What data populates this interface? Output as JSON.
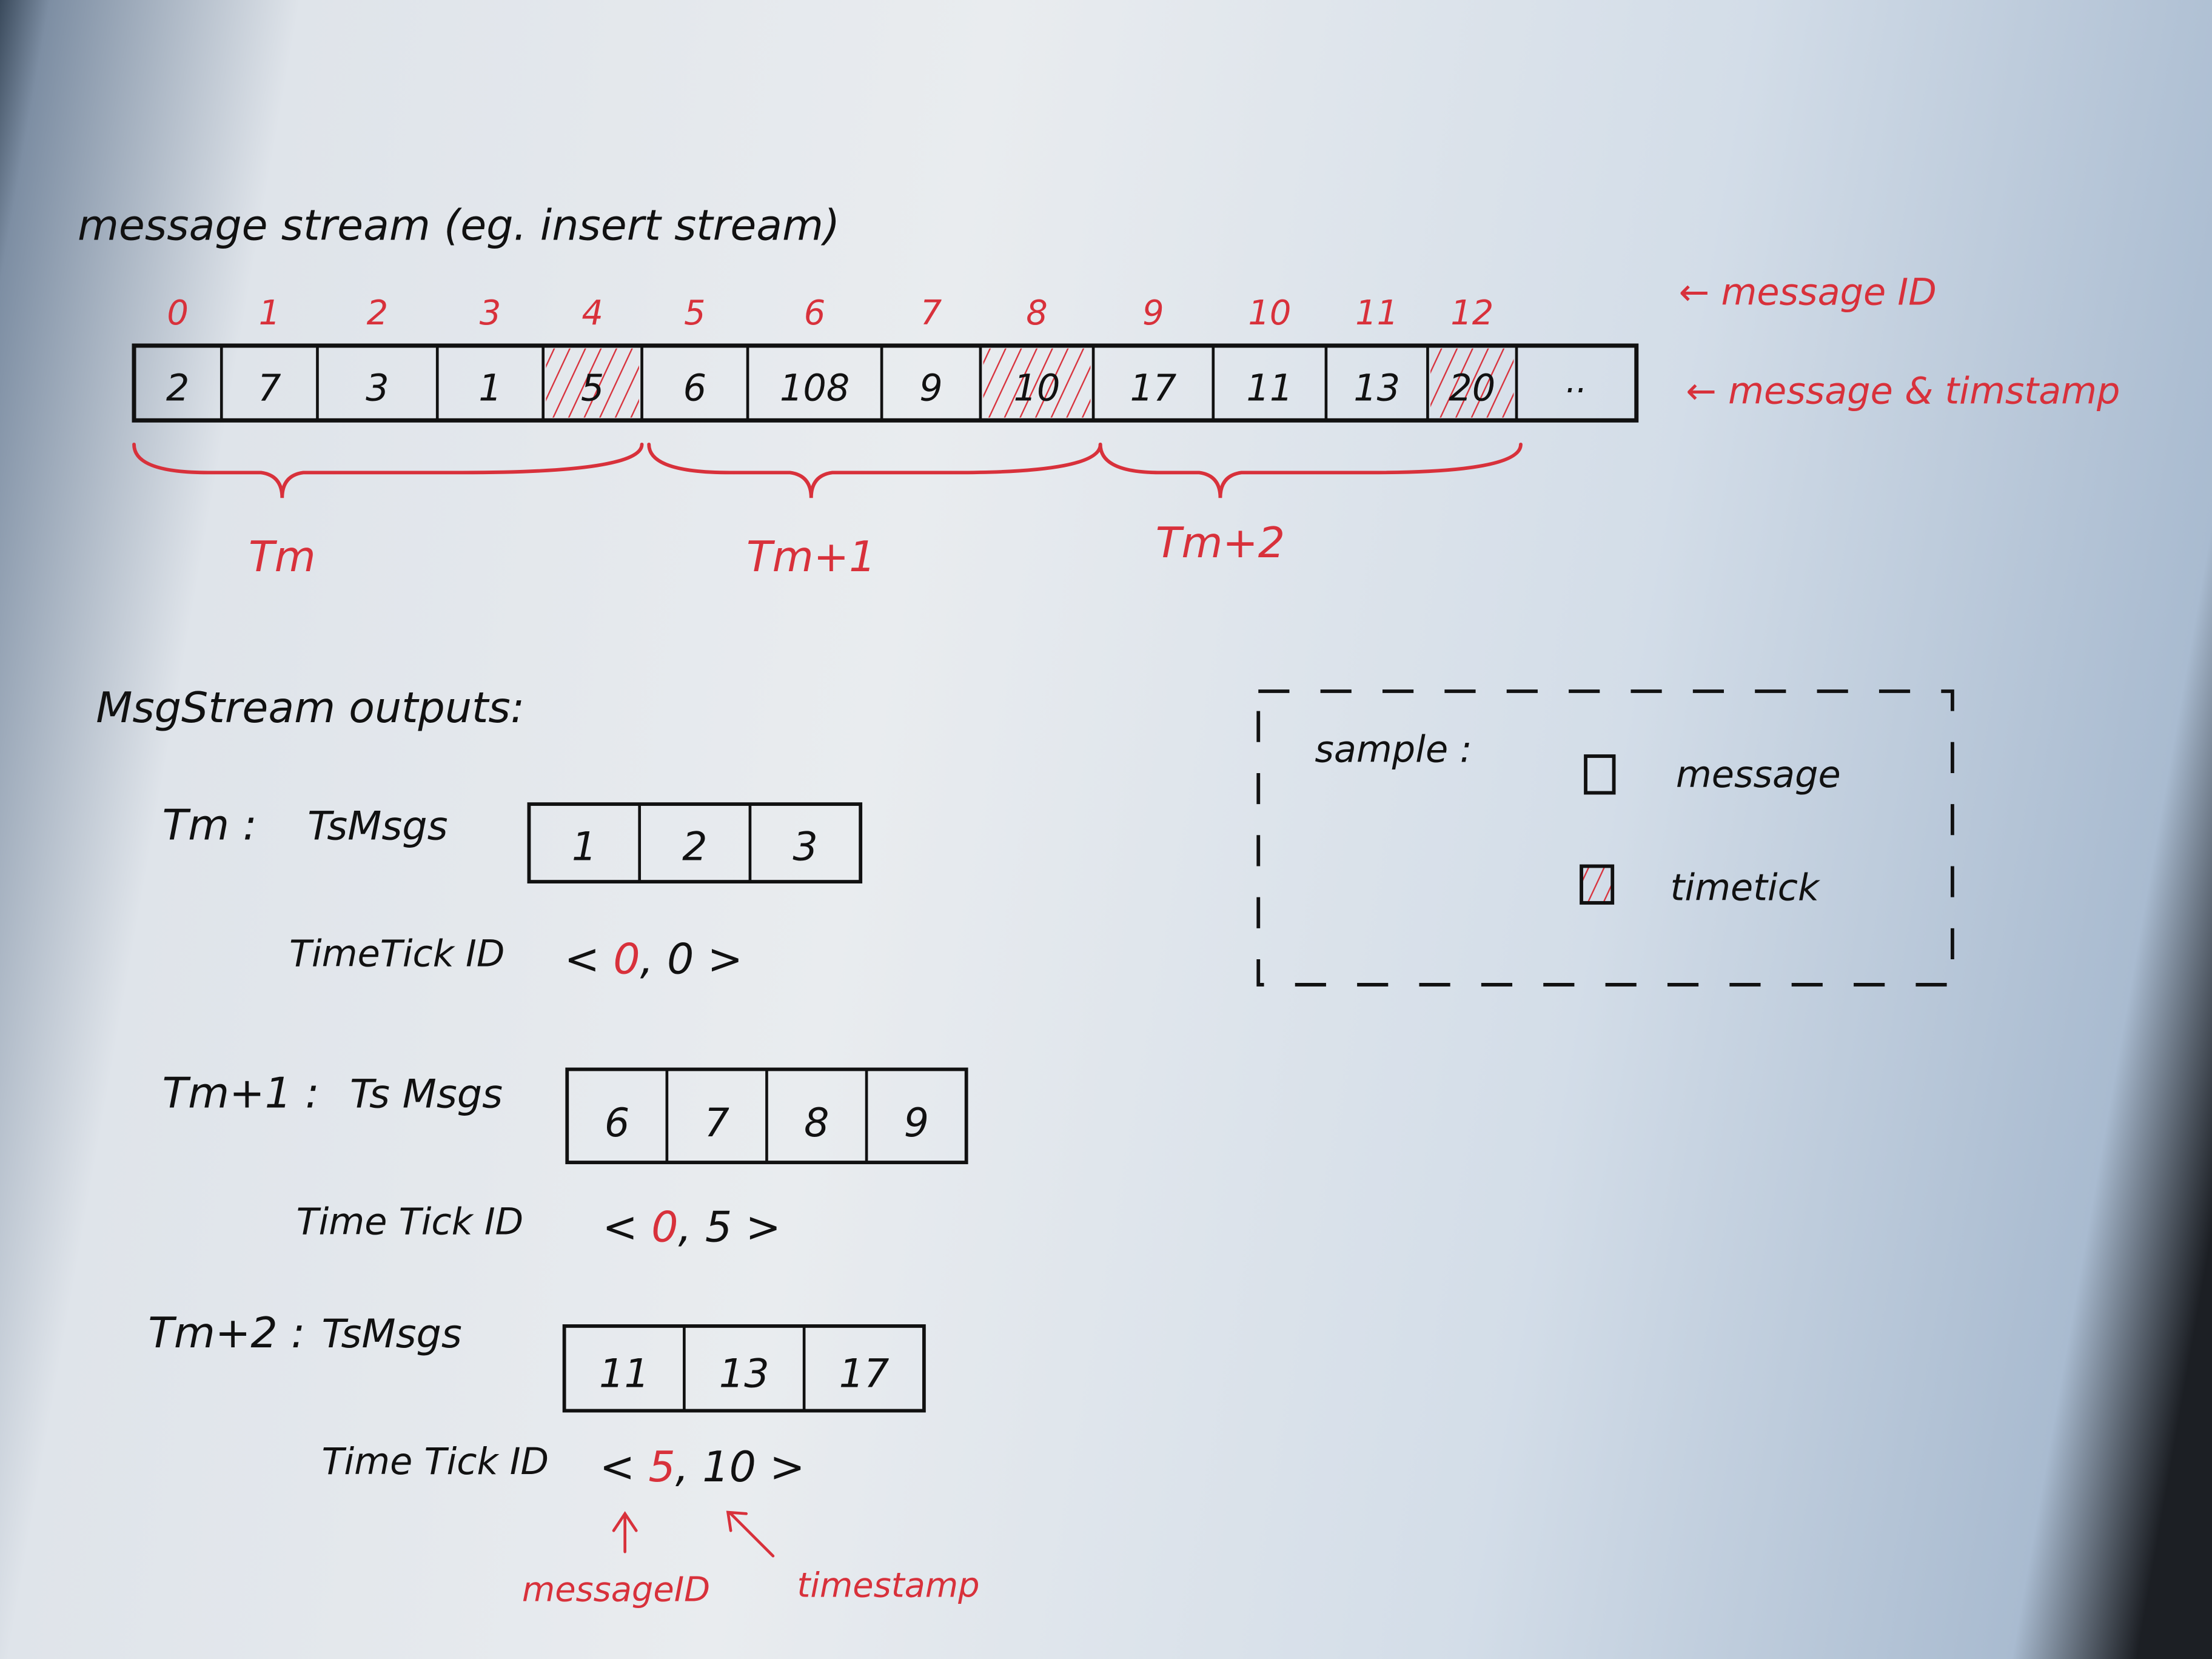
{
  "title": "message stream (eg. insert stream)",
  "stream": {
    "message_ids": [
      "0",
      "1",
      "2",
      "3",
      "4",
      "5",
      "6",
      "7",
      "8",
      "9",
      "10",
      "11",
      "12"
    ],
    "timestamps": [
      "2",
      "7",
      "3",
      "1",
      "5",
      "6",
      "108",
      "9",
      "10",
      "17",
      "11",
      "13",
      "20"
    ],
    "timetick_flags": [
      false,
      false,
      false,
      false,
      true,
      false,
      false,
      false,
      true,
      false,
      false,
      false,
      true
    ],
    "ellipsis": "..",
    "label_message_id": "← message ID",
    "label_message_timestamp": "← message & timstamp"
  },
  "braces": [
    "Tm",
    "Tm+1",
    "Tm+2"
  ],
  "outputs_heading": "MsgStream outputs:",
  "outputs": [
    {
      "period": "Tm :",
      "msgs_label": "TsMsgs",
      "msgs": [
        "1",
        "2",
        "3"
      ],
      "tt_label": "TimeTick ID",
      "tt_message_id": "0",
      "tt_timestamp": "0"
    },
    {
      "period": "Tm+1 :",
      "msgs_label": "Ts Msgs",
      "msgs": [
        "6",
        "7",
        "8",
        "9"
      ],
      "tt_label": "Time Tick ID",
      "tt_message_id": "0",
      "tt_timestamp": "5"
    },
    {
      "period": "Tm+2 :",
      "msgs_label": "TsMsgs",
      "msgs": [
        "11",
        "13",
        "17"
      ],
      "tt_label": "Time Tick ID",
      "tt_message_id": "5",
      "tt_timestamp": "10"
    }
  ],
  "annotations": {
    "message_id": "messageID",
    "timestamp": "timestamp"
  },
  "legend": {
    "title": "sample :",
    "message": "message",
    "timetick": "timetick"
  },
  "colors": {
    "ink": "#111111",
    "red_pen": "#d8313b",
    "paper": "#e9ecef"
  }
}
